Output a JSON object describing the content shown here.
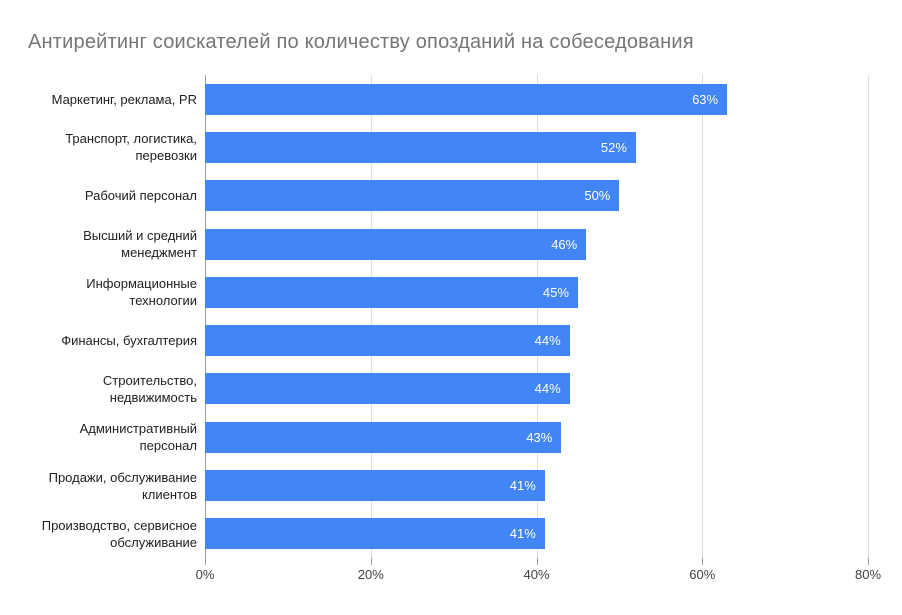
{
  "chart_data": {
    "type": "bar",
    "orientation": "horizontal",
    "title": "Антирейтинг соискателей по количеству опозданий на собеседования",
    "categories": [
      "Маркетинг, реклама, PR",
      "Транспорт, логистика, перевозки",
      "Рабочий персонал",
      "Высший и средний менеджмент",
      "Информационные технологии",
      "Финансы, бухгалтерия",
      "Строительство, недвижимость",
      "Административный персонал",
      "Продажи, обслуживание клиентов",
      "Производство, сервисное обслуживание"
    ],
    "values": [
      63,
      52,
      50,
      46,
      45,
      44,
      44,
      43,
      41,
      41
    ],
    "value_suffix": "%",
    "xlabel": "",
    "ylabel": "",
    "xlim": [
      0,
      80
    ],
    "x_ticks": [
      "0%",
      "20%",
      "40%",
      "60%",
      "80%"
    ],
    "grid": true,
    "legend": "none",
    "colors": {
      "bar": "#4285f4",
      "value_label": "#ffffff",
      "title": "#757575",
      "gridline": "#dadce0",
      "axis_line": "#9e9e9e",
      "category_label": "#202124",
      "tick_label": "#424242",
      "background": "#ffffff"
    }
  }
}
